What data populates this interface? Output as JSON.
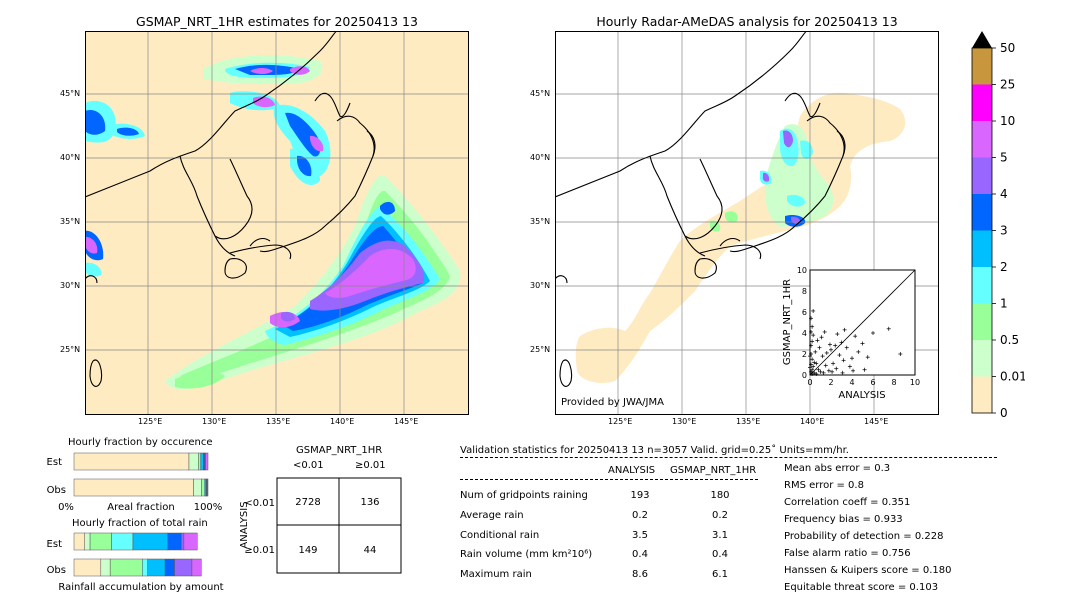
{
  "left_map": {
    "title": "GSMAP_NRT_1HR estimates for 20250413 13",
    "lon_ticks": [
      "125°E",
      "130°E",
      "135°E",
      "140°E",
      "145°E"
    ],
    "lat_ticks": [
      "45°N",
      "40°N",
      "35°N",
      "30°N",
      "25°N"
    ]
  },
  "right_map": {
    "title": "Hourly Radar-AMeDAS analysis for 20250413 13",
    "lon_ticks": [
      "125°E",
      "130°E",
      "135°E",
      "140°E",
      "145°E"
    ],
    "lat_ticks": [
      "45°N",
      "40°N",
      "35°N",
      "30°N",
      "25°N"
    ],
    "credit": "Provided by JWA/JMA"
  },
  "colorbar": {
    "labels": [
      "50",
      "25",
      "10",
      "5",
      "4",
      "3",
      "2",
      "1",
      "0.5",
      "0.01",
      "0"
    ],
    "colors": [
      "#c8963c",
      "#ff00ff",
      "#d966ff",
      "#9966ff",
      "#0066ff",
      "#00bfff",
      "#66ffff",
      "#99ff99",
      "#ccffcc",
      "#ffebc2"
    ]
  },
  "chart_data": [
    {
      "type": "scatter",
      "xlabel": "ANALYSIS",
      "ylabel": "GSMAP_NRT_1HR",
      "xlim": [
        0,
        10
      ],
      "ylim": [
        0,
        10
      ],
      "x_ticks": [
        "0",
        "2",
        "4",
        "6",
        "8",
        "10"
      ],
      "y_ticks": [
        "0",
        "2",
        "4",
        "6",
        "8",
        "10"
      ],
      "diagonal": true,
      "points": [
        [
          0.1,
          0.3
        ],
        [
          0.2,
          0.5
        ],
        [
          0.1,
          1.0
        ],
        [
          0.3,
          0.8
        ],
        [
          0.2,
          1.5
        ],
        [
          0.1,
          2.0
        ],
        [
          0.4,
          1.2
        ],
        [
          0.1,
          2.8
        ],
        [
          0.2,
          3.2
        ],
        [
          0.3,
          3.8
        ],
        [
          0.1,
          4.1
        ],
        [
          0.2,
          4.6
        ],
        [
          0.1,
          5.4
        ],
        [
          0.3,
          6.1
        ],
        [
          0.5,
          2.2
        ],
        [
          0.6,
          1.1
        ],
        [
          0.8,
          0.5
        ],
        [
          1.0,
          0.3
        ],
        [
          1.2,
          1.8
        ],
        [
          1.5,
          0.9
        ],
        [
          1.8,
          0.4
        ],
        [
          2.0,
          2.4
        ],
        [
          2.2,
          1.1
        ],
        [
          2.5,
          0.6
        ],
        [
          2.8,
          1.9
        ],
        [
          3.0,
          3.1
        ],
        [
          3.2,
          1.4
        ],
        [
          3.5,
          2.6
        ],
        [
          3.8,
          0.8
        ],
        [
          4.0,
          1.6
        ],
        [
          4.3,
          3.7
        ],
        [
          4.6,
          2.2
        ],
        [
          5.0,
          3.0
        ],
        [
          5.5,
          1.7
        ],
        [
          6.0,
          4.0
        ],
        [
          7.5,
          4.4
        ],
        [
          8.6,
          2.0
        ],
        [
          1.1,
          3.6
        ],
        [
          1.4,
          4.1
        ],
        [
          0.7,
          3.3
        ],
        [
          2.6,
          3.9
        ],
        [
          3.3,
          4.3
        ],
        [
          1.9,
          2.9
        ],
        [
          0.9,
          2.6
        ],
        [
          0.4,
          0.2
        ],
        [
          0.6,
          0.1
        ],
        [
          1.3,
          0.2
        ],
        [
          2.1,
          0.3
        ],
        [
          3.1,
          0.2
        ],
        [
          4.1,
          0.4
        ],
        [
          5.2,
          0.5
        ],
        [
          1.6,
          2.1
        ],
        [
          2.4,
          2.8
        ],
        [
          0.2,
          0.1
        ],
        [
          0.0,
          0.7
        ],
        [
          0.0,
          1.8
        ]
      ]
    },
    {
      "type": "bar",
      "title": "Hourly fraction by occurence",
      "categories": [
        "Est",
        "Obs"
      ],
      "xlabel": "Areal fraction",
      "x_ticks": [
        "0%",
        "100%"
      ],
      "series": [
        {
          "values": [
            0.858,
            0.892
          ]
        },
        {
          "values": [
            0.07,
            0.06
          ]
        },
        {
          "values": [
            0.015,
            0.02
          ]
        },
        {
          "values": [
            0.01,
            0.01
          ]
        },
        {
          "values": [
            0.012,
            0.006
          ]
        },
        {
          "values": [
            0.01,
            0.004
          ]
        },
        {
          "values": [
            0.008,
            0.004
          ]
        },
        {
          "values": [
            0.017,
            0.004
          ]
        }
      ]
    },
    {
      "type": "bar",
      "title": "Hourly fraction of total rain",
      "categories": [
        "Est",
        "Obs"
      ],
      "xlabel": "Rainfall accumulation by amount",
      "series": [
        {
          "values": [
            0.08,
            0.2
          ]
        },
        {
          "values": [
            0.04,
            0.07
          ]
        },
        {
          "values": [
            0.16,
            0.24
          ]
        },
        {
          "values": [
            0.16,
            0.04
          ]
        },
        {
          "values": [
            0.26,
            0.13
          ]
        },
        {
          "values": [
            0.1,
            0.07
          ]
        },
        {
          "values": [
            0.02,
            0.13
          ]
        },
        {
          "values": [
            0.1,
            0.07
          ]
        }
      ]
    }
  ],
  "contingency": {
    "title": "GSMAP_NRT_1HR",
    "col_labels": [
      "<0.01",
      "≥0.01"
    ],
    "row_labels": [
      "<0.01",
      "≥0.01"
    ],
    "side_label": "ANALYSIS",
    "cells": [
      [
        "2728",
        "136"
      ],
      [
        "149",
        "44"
      ]
    ]
  },
  "validation": {
    "header": "Validation statistics for 20250413 13  n=3057 Valid. grid=0.25˚ Units=mm/hr.",
    "col_analysis": "ANALYSIS",
    "col_gsmap": "GSMAP_NRT_1HR",
    "rows": [
      {
        "label": "Num of gridpoints raining",
        "a": "193",
        "g": "180"
      },
      {
        "label": "Average rain",
        "a": "0.2",
        "g": "0.2"
      },
      {
        "label": "Conditional rain",
        "a": "3.5",
        "g": "3.1"
      },
      {
        "label": "Rain volume (mm km²10⁶)",
        "a": "0.4",
        "g": "0.4"
      },
      {
        "label": "Maximum rain",
        "a": "8.6",
        "g": "6.1"
      }
    ],
    "scores": [
      "Mean abs error =    0.3",
      "RMS error =    0.8",
      "Correlation coeff =  0.351",
      "Frequency bias =  0.933",
      "Probability of detection =  0.228",
      "False alarm ratio =  0.756",
      "Hanssen & Kuipers score =  0.180",
      "Equitable threat score =  0.103"
    ]
  }
}
